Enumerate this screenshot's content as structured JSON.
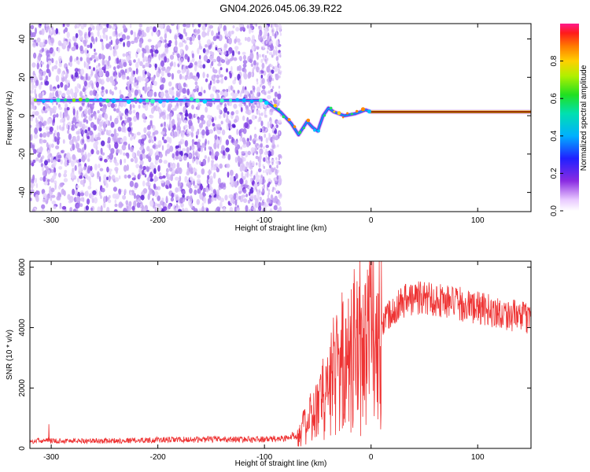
{
  "title": "GN04.2026.045.06.39.R22",
  "chart_data": [
    {
      "type": "heatmap",
      "xlabel": "Height of straight line (km)",
      "ylabel": "Frequency (Hz)",
      "xlim": [
        -320,
        150
      ],
      "ylim": [
        -50,
        48
      ],
      "xticks": [
        -300,
        -200,
        -100,
        0,
        100
      ],
      "yticks": [
        -40,
        -20,
        0,
        20,
        40
      ],
      "colorbar": {
        "label": "Normalized spectral amplitude",
        "range": [
          0,
          1
        ],
        "ticks": [
          0.0,
          0.2,
          0.4,
          0.6,
          0.8
        ]
      },
      "ridge": [
        {
          "x": -315,
          "y": 8
        },
        {
          "x": -250,
          "y": 8
        },
        {
          "x": -220,
          "y": 8
        },
        {
          "x": -150,
          "y": 8
        },
        {
          "x": -100,
          "y": 8
        },
        {
          "x": -95,
          "y": 6
        },
        {
          "x": -85,
          "y": 2
        },
        {
          "x": -75,
          "y": -4
        },
        {
          "x": -68,
          "y": -10
        },
        {
          "x": -60,
          "y": -3
        },
        {
          "x": -55,
          "y": -6
        },
        {
          "x": -50,
          "y": -8
        },
        {
          "x": -45,
          "y": 0
        },
        {
          "x": -40,
          "y": 4
        },
        {
          "x": -35,
          "y": 2
        },
        {
          "x": -25,
          "y": 0
        },
        {
          "x": -15,
          "y": 1
        },
        {
          "x": -5,
          "y": 3
        },
        {
          "x": 0,
          "y": 2
        },
        {
          "x": 50,
          "y": 2
        },
        {
          "x": 95,
          "y": 2
        },
        {
          "x": 150,
          "y": 2
        }
      ]
    },
    {
      "type": "line",
      "xlabel": "Height of straight line (km)",
      "ylabel": "SNR (10 * v/v)",
      "xlim": [
        -320,
        150
      ],
      "ylim": [
        0,
        6200
      ],
      "xticks": [
        -300,
        -200,
        -100,
        0,
        100
      ],
      "yticks": [
        0,
        2000,
        4000,
        6000
      ],
      "color": "#ee3333",
      "envelope": [
        {
          "x": -320,
          "y": 250
        },
        {
          "x": -250,
          "y": 250
        },
        {
          "x": -200,
          "y": 280
        },
        {
          "x": -150,
          "y": 300
        },
        {
          "x": -100,
          "y": 300
        },
        {
          "x": -80,
          "y": 330
        },
        {
          "x": -70,
          "y": 450
        },
        {
          "x": -60,
          "y": 800
        },
        {
          "x": -50,
          "y": 1300
        },
        {
          "x": -40,
          "y": 1900
        },
        {
          "x": -30,
          "y": 2600
        },
        {
          "x": -20,
          "y": 3100
        },
        {
          "x": -10,
          "y": 3400
        },
        {
          "x": 0,
          "y": 3700
        },
        {
          "x": 10,
          "y": 4200
        },
        {
          "x": 20,
          "y": 4600
        },
        {
          "x": 30,
          "y": 4900
        },
        {
          "x": 45,
          "y": 5000
        },
        {
          "x": 60,
          "y": 4950
        },
        {
          "x": 80,
          "y": 4800
        },
        {
          "x": 100,
          "y": 4650
        },
        {
          "x": 120,
          "y": 4500
        },
        {
          "x": 140,
          "y": 4350
        },
        {
          "x": 150,
          "y": 4300
        }
      ]
    }
  ]
}
